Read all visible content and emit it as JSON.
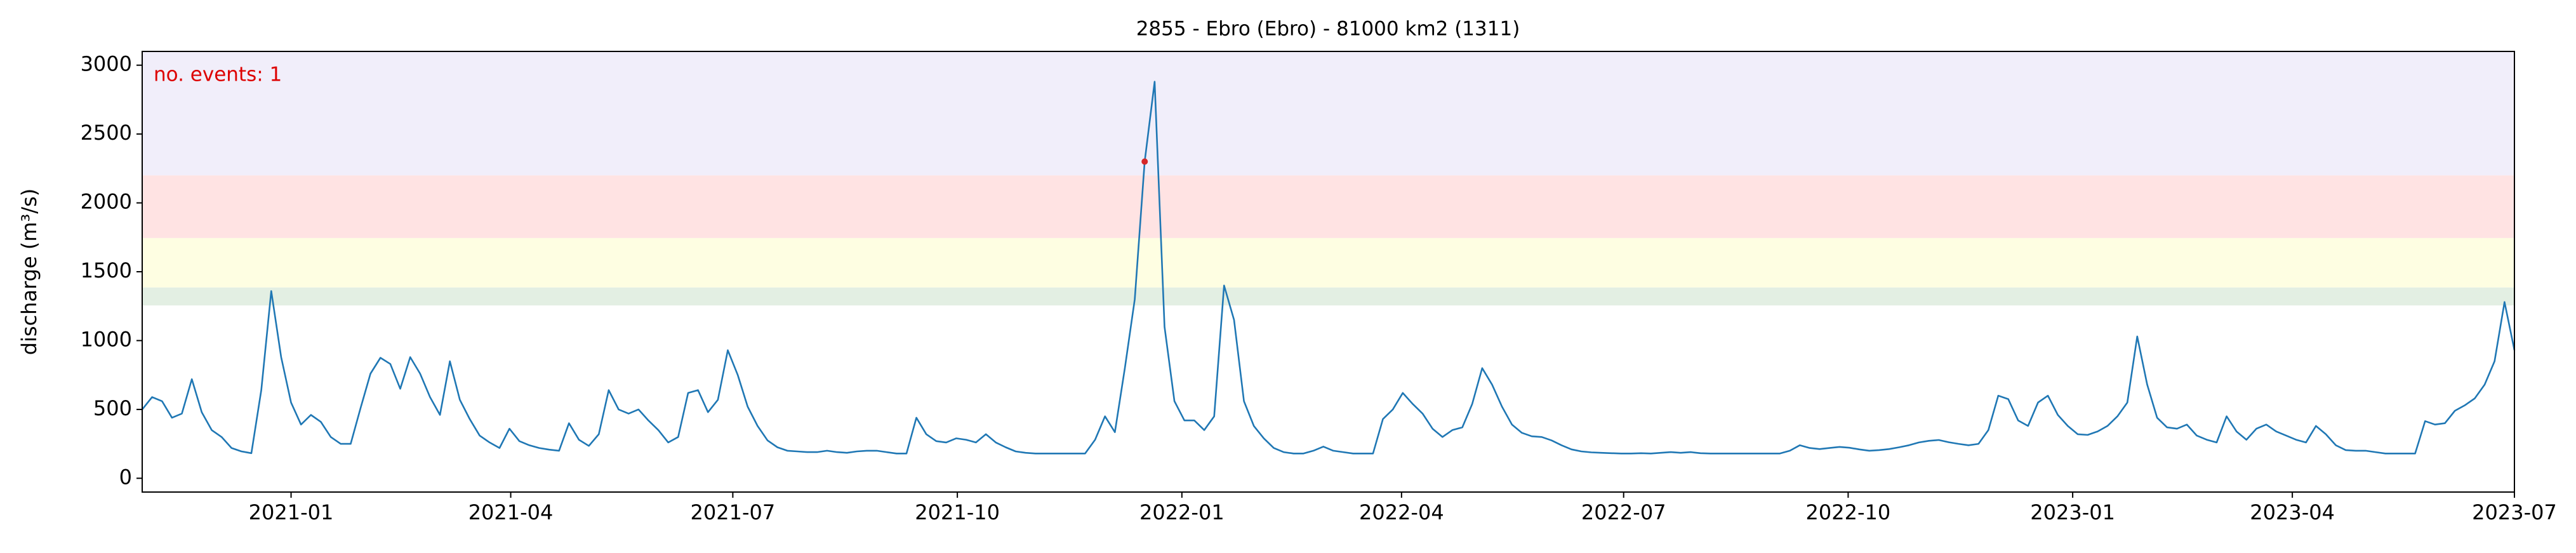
{
  "chart_data": {
    "type": "line",
    "title": "2855 - Ebro (Ebro) - 81000 km2 (1311)",
    "y_label": "discharge (m³/s)",
    "annotation": "no. events: 1",
    "xlim": [
      "2020-11",
      "2023-07"
    ],
    "xticks": [
      "2021-01",
      "2021-04",
      "2021-07",
      "2021-10",
      "2022-01",
      "2022-04",
      "2022-07",
      "2022-10",
      "2023-01",
      "2023-04",
      "2023-07"
    ],
    "ylim": [
      -100,
      3100
    ],
    "yticks": [
      0,
      500,
      1000,
      1500,
      2000,
      2500,
      3000
    ],
    "bands": [
      {
        "from": 1255,
        "to": 1386,
        "color": "#e3efe3"
      },
      {
        "from": 1386,
        "to": 1745,
        "color": "#fefee2"
      },
      {
        "from": 1745,
        "to": 2200,
        "color": "#ffe3e3"
      },
      {
        "from": 2200,
        "to": 3100,
        "color": "#f1eefa"
      }
    ],
    "series": [
      {
        "color": "#1f77b4",
        "values": [
          500,
          590,
          560,
          440,
          470,
          720,
          480,
          350,
          300,
          220,
          195,
          182,
          640,
          1360,
          880,
          550,
          390,
          460,
          410,
          300,
          250,
          250,
          510,
          760,
          875,
          830,
          650,
          880,
          760,
          590,
          460,
          850,
          570,
          430,
          310,
          260,
          220,
          360,
          270,
          240,
          220,
          208,
          200,
          400,
          280,
          235,
          320,
          640,
          500,
          470,
          500,
          420,
          350,
          260,
          300,
          620,
          640,
          480,
          570,
          930,
          750,
          520,
          380,
          275,
          225,
          200,
          195,
          190,
          190,
          200,
          190,
          185,
          195,
          200,
          200,
          190,
          180,
          180,
          440,
          320,
          270,
          260,
          290,
          280,
          260,
          320,
          260,
          225,
          195,
          185,
          180,
          180,
          180,
          180,
          180,
          180,
          280,
          450,
          335,
          800,
          1300,
          2300,
          2880,
          1100,
          560,
          420,
          420,
          350,
          450,
          1400,
          1150,
          560,
          380,
          290,
          220,
          190,
          180,
          180,
          200,
          230,
          200,
          190,
          180,
          180,
          180,
          430,
          500,
          620,
          540,
          470,
          360,
          300,
          350,
          370,
          540,
          800,
          680,
          520,
          390,
          330,
          305,
          300,
          275,
          240,
          210,
          195,
          188,
          185,
          182,
          180,
          180,
          182,
          180,
          185,
          190,
          185,
          190,
          182,
          180,
          180,
          180,
          180,
          180,
          180,
          180,
          180,
          200,
          240,
          220,
          212,
          220,
          228,
          222,
          210,
          200,
          205,
          212,
          225,
          240,
          260,
          272,
          278,
          262,
          250,
          240,
          250,
          350,
          600,
          575,
          420,
          380,
          550,
          600,
          460,
          380,
          320,
          315,
          340,
          380,
          450,
          550,
          1030,
          680,
          440,
          370,
          360,
          390,
          310,
          280,
          260,
          450,
          340,
          280,
          360,
          390,
          340,
          310,
          280,
          260,
          380,
          320,
          240,
          205,
          200,
          200,
          190,
          180,
          180,
          180,
          180,
          415,
          390,
          400,
          490,
          530,
          580,
          680,
          850,
          1280,
          930
        ]
      },
      {
        "color": "#d62728",
        "values": [
          null,
          null,
          null,
          null,
          null,
          null,
          null,
          null,
          null,
          null,
          null,
          null,
          null,
          null,
          null,
          null,
          null,
          null,
          null,
          null,
          null,
          null,
          null,
          null,
          null,
          null,
          null,
          null,
          null,
          null,
          null,
          null,
          null,
          null,
          null,
          null,
          null,
          null,
          null,
          null,
          null,
          null,
          null,
          null,
          null,
          null,
          null,
          null,
          null,
          null,
          null,
          null,
          null,
          null,
          null,
          null,
          null,
          null,
          null,
          null,
          null,
          null,
          null,
          null,
          null,
          null,
          null,
          null,
          null,
          null,
          null,
          null,
          null,
          null,
          null,
          null,
          null,
          null,
          null,
          null,
          null,
          null,
          null,
          null,
          null,
          null,
          null,
          null,
          null,
          null,
          null,
          null,
          null,
          null,
          null,
          null,
          null,
          null,
          null,
          null,
          null,
          2300,
          null,
          null,
          null,
          null,
          null,
          null,
          null,
          null,
          null,
          null,
          null,
          null,
          null,
          null,
          null,
          null,
          null,
          null,
          null,
          null,
          null,
          null,
          null,
          null,
          null,
          null,
          null,
          null,
          null,
          null,
          null,
          null,
          null,
          null,
          null,
          null,
          null,
          null,
          null,
          null,
          null,
          null,
          null,
          null,
          null,
          null,
          null,
          null,
          null,
          null,
          null,
          null,
          null,
          null,
          null,
          null,
          null,
          null,
          null,
          null,
          null,
          null,
          null,
          null,
          null,
          null,
          null,
          null,
          null,
          null,
          null,
          null,
          null,
          null,
          null,
          null,
          null,
          null,
          null,
          null,
          null,
          null,
          null,
          null,
          null,
          null,
          null,
          null,
          null,
          null,
          null,
          null,
          null,
          null,
          null,
          null,
          null,
          null,
          null,
          null,
          null,
          null,
          null,
          null,
          null,
          null,
          null,
          null,
          null,
          null,
          null,
          null,
          null,
          null,
          null,
          null,
          null,
          null,
          null,
          null,
          null,
          null,
          null,
          null,
          null,
          null,
          null,
          null,
          null,
          null,
          null,
          null,
          null,
          null,
          null,
          null,
          null,
          null
        ]
      }
    ]
  }
}
